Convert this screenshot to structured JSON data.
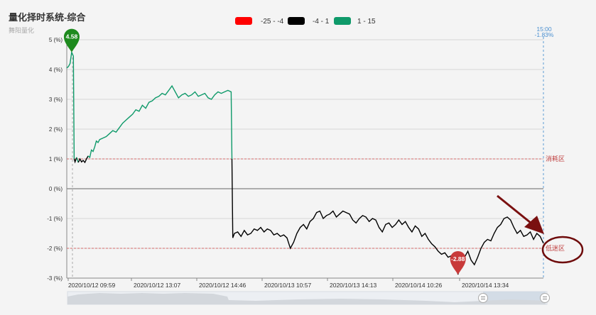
{
  "chart_data": {
    "type": "line",
    "title": "量化择时系统-综合",
    "subtitle": "舞阳量化",
    "ylim": [
      -3,
      5
    ],
    "y_ticks": [
      5,
      4,
      3,
      2,
      1,
      0,
      -1,
      -2,
      -3
    ],
    "y_tick_labels": [
      "5 (%)",
      "4 (%)",
      "3 (%)",
      "2 (%)",
      "1 (%)",
      "0 (%)",
      "-1 (%)",
      "-2 (%)",
      "-3 (%)"
    ],
    "x_tick_labels": [
      "2020/10/12 09:59",
      "2020/10/12 13:07",
      "2020/10/12 14:46",
      "2020/10/13 10:57",
      "2020/10/13 14:13",
      "2020/10/14 10:26",
      "2020/10/14 13:34"
    ],
    "grid": true,
    "legend_position": "top-center",
    "legend": [
      {
        "label": "-25 - -4",
        "color": "#ff0000"
      },
      {
        "label": "-4 - 1",
        "color": "#000000"
      },
      {
        "label": "1 - 15",
        "color": "#0f9a6a"
      }
    ],
    "mark_lines": [
      {
        "value": 1,
        "label": "消耗区",
        "color": "#d46a6a"
      },
      {
        "value": -2,
        "label": "低迷区",
        "color": "#d46a6a"
      }
    ],
    "marker_max": {
      "value": "4.58",
      "color": "#1e8a1e"
    },
    "marker_min": {
      "value": "-2.88",
      "color": "#c83a3a"
    },
    "end_time_label": "15:00",
    "end_value_label": "-1.83%",
    "series": [
      {
        "points": [
          [
            0,
            4.05
          ],
          [
            1,
            4.1
          ],
          [
            2,
            4.2
          ],
          [
            3,
            4.58
          ],
          [
            4,
            4.45
          ],
          [
            4.5,
            1.0
          ],
          [
            5,
            0.9
          ],
          [
            6,
            1.05
          ],
          [
            7,
            0.88
          ],
          [
            8,
            1.0
          ],
          [
            9,
            0.9
          ],
          [
            10,
            0.95
          ],
          [
            11,
            0.88
          ],
          [
            12,
            1.0
          ],
          [
            13,
            1.1
          ],
          [
            14,
            1.05
          ],
          [
            15,
            1.3
          ],
          [
            16,
            1.25
          ],
          [
            17,
            1.4
          ],
          [
            18,
            1.6
          ],
          [
            19,
            1.55
          ],
          [
            20,
            1.65
          ],
          [
            22,
            1.7
          ],
          [
            24,
            1.75
          ],
          [
            26,
            1.85
          ],
          [
            28,
            1.95
          ],
          [
            30,
            1.9
          ],
          [
            32,
            2.05
          ],
          [
            34,
            2.2
          ],
          [
            36,
            2.3
          ],
          [
            38,
            2.4
          ],
          [
            40,
            2.5
          ],
          [
            42,
            2.65
          ],
          [
            44,
            2.6
          ],
          [
            46,
            2.8
          ],
          [
            48,
            2.7
          ],
          [
            50,
            2.9
          ],
          [
            52,
            2.95
          ],
          [
            54,
            3.05
          ],
          [
            56,
            3.1
          ],
          [
            58,
            3.2
          ],
          [
            60,
            3.15
          ],
          [
            62,
            3.3
          ],
          [
            64,
            3.45
          ],
          [
            66,
            3.25
          ],
          [
            68,
            3.05
          ],
          [
            70,
            3.15
          ],
          [
            72,
            3.2
          ],
          [
            74,
            3.1
          ],
          [
            76,
            3.15
          ],
          [
            78,
            3.25
          ],
          [
            80,
            3.1
          ],
          [
            82,
            3.15
          ],
          [
            84,
            3.2
          ],
          [
            86,
            3.05
          ],
          [
            88,
            3.0
          ],
          [
            90,
            3.15
          ],
          [
            92,
            3.25
          ],
          [
            94,
            3.2
          ],
          [
            96,
            3.25
          ],
          [
            98,
            3.3
          ],
          [
            100,
            3.25
          ],
          [
            100.5,
            1.0
          ],
          [
            101,
            -1.65
          ],
          [
            102,
            -1.5
          ],
          [
            104,
            -1.45
          ],
          [
            106,
            -1.6
          ],
          [
            108,
            -1.4
          ],
          [
            110,
            -1.55
          ],
          [
            112,
            -1.5
          ],
          [
            114,
            -1.35
          ],
          [
            116,
            -1.4
          ],
          [
            118,
            -1.3
          ],
          [
            120,
            -1.45
          ],
          [
            122,
            -1.35
          ],
          [
            124,
            -1.4
          ],
          [
            126,
            -1.55
          ],
          [
            128,
            -1.5
          ],
          [
            130,
            -1.6
          ],
          [
            132,
            -1.55
          ],
          [
            134,
            -1.65
          ],
          [
            136,
            -2.0
          ],
          [
            138,
            -1.8
          ],
          [
            140,
            -1.5
          ],
          [
            142,
            -1.3
          ],
          [
            144,
            -1.2
          ],
          [
            146,
            -1.35
          ],
          [
            148,
            -1.1
          ],
          [
            150,
            -1.0
          ],
          [
            152,
            -0.8
          ],
          [
            154,
            -0.75
          ],
          [
            156,
            -1.0
          ],
          [
            158,
            -0.9
          ],
          [
            160,
            -0.85
          ],
          [
            162,
            -0.75
          ],
          [
            164,
            -0.95
          ],
          [
            166,
            -0.85
          ],
          [
            168,
            -0.75
          ],
          [
            170,
            -0.8
          ],
          [
            172,
            -0.85
          ],
          [
            174,
            -1.05
          ],
          [
            176,
            -1.15
          ],
          [
            178,
            -1.0
          ],
          [
            180,
            -0.9
          ],
          [
            182,
            -0.95
          ],
          [
            184,
            -1.1
          ],
          [
            186,
            -1.0
          ],
          [
            188,
            -1.05
          ],
          [
            190,
            -1.3
          ],
          [
            192,
            -1.45
          ],
          [
            194,
            -1.2
          ],
          [
            196,
            -1.15
          ],
          [
            198,
            -1.3
          ],
          [
            200,
            -1.2
          ],
          [
            202,
            -1.05
          ],
          [
            204,
            -1.2
          ],
          [
            206,
            -1.1
          ],
          [
            208,
            -1.3
          ],
          [
            210,
            -1.45
          ],
          [
            212,
            -1.25
          ],
          [
            214,
            -1.35
          ],
          [
            216,
            -1.6
          ],
          [
            218,
            -1.5
          ],
          [
            220,
            -1.7
          ],
          [
            222,
            -1.85
          ],
          [
            224,
            -1.95
          ],
          [
            226,
            -2.1
          ],
          [
            228,
            -2.2
          ],
          [
            230,
            -2.15
          ],
          [
            232,
            -2.3
          ],
          [
            234,
            -2.25
          ],
          [
            236,
            -2.35
          ],
          [
            238,
            -2.88
          ],
          [
            240,
            -2.4
          ],
          [
            242,
            -2.3
          ],
          [
            244,
            -2.1
          ],
          [
            246,
            -2.4
          ],
          [
            248,
            -2.55
          ],
          [
            250,
            -2.3
          ],
          [
            252,
            -2.0
          ],
          [
            254,
            -1.8
          ],
          [
            256,
            -1.7
          ],
          [
            258,
            -1.75
          ],
          [
            260,
            -1.5
          ],
          [
            262,
            -1.3
          ],
          [
            264,
            -1.2
          ],
          [
            266,
            -1.0
          ],
          [
            268,
            -0.95
          ],
          [
            270,
            -1.05
          ],
          [
            272,
            -1.3
          ],
          [
            274,
            -1.5
          ],
          [
            276,
            -1.4
          ],
          [
            278,
            -1.6
          ],
          [
            280,
            -1.55
          ],
          [
            282,
            -1.45
          ],
          [
            284,
            -1.7
          ],
          [
            286,
            -1.5
          ],
          [
            288,
            -1.6
          ],
          [
            290,
            -1.83
          ]
        ]
      }
    ]
  }
}
